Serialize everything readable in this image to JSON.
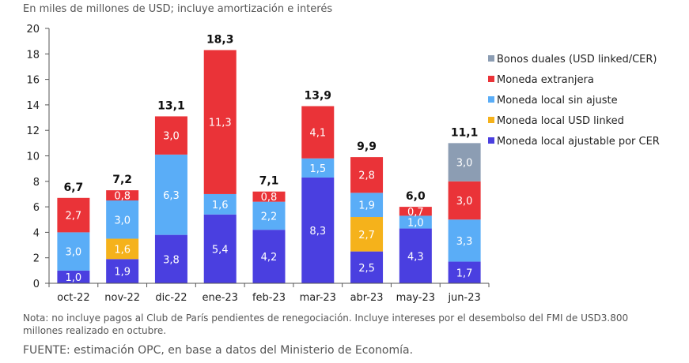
{
  "subtitle": "En miles de millones de USD; incluye amortización e interés",
  "note": "Nota: no incluye pagos al Club de París pendientes de renegociación. Incluye intereses por el desembolso del FMI de USD3.800 millones realizado en octubre.",
  "source": "FUENTE: estimación OPC, en base a datos del Ministerio de Economía.",
  "chart_data": {
    "type": "bar",
    "stacked": true,
    "title": "",
    "xlabel": "",
    "ylabel": "",
    "ylim": [
      0,
      20
    ],
    "yticks": [
      "0",
      "2",
      "4",
      "6",
      "8",
      "10",
      "12",
      "14",
      "16",
      "18",
      "20"
    ],
    "grid": false,
    "legend_position": "right",
    "categories": [
      "oct-22",
      "nov-22",
      "dic-22",
      "ene-23",
      "feb-23",
      "mar-23",
      "abr-23",
      "may-23",
      "jun-23"
    ],
    "totals": [
      "6,7",
      "7,2",
      "13,1",
      "18,3",
      "7,1",
      "13,9",
      "9,9",
      "6,0",
      "11,1"
    ],
    "series": [
      {
        "name": "Moneda local ajustable por CER",
        "color": "#4a3fe0",
        "values": [
          1.0,
          1.9,
          3.8,
          5.4,
          4.2,
          8.3,
          2.5,
          4.3,
          1.7
        ],
        "labels": [
          "1,0",
          "1,9",
          "3,8",
          "5,4",
          "4,2",
          "8,3",
          "2,5",
          "4,3",
          "1,7"
        ]
      },
      {
        "name": "Moneda local USD linked",
        "color": "#f5b21b",
        "values": [
          0,
          1.6,
          0,
          0,
          0,
          0,
          2.7,
          0,
          0
        ],
        "labels": [
          "",
          "1,6",
          "",
          "",
          "",
          "",
          "2,7",
          "",
          ""
        ]
      },
      {
        "name": "Moneda local sin ajuste",
        "color": "#5aadf7",
        "values": [
          3.0,
          3.0,
          6.3,
          1.6,
          2.2,
          1.5,
          1.9,
          1.0,
          3.3
        ],
        "labels": [
          "3,0",
          "3,0",
          "6,3",
          "1,6",
          "2,2",
          "1,5",
          "1,9",
          "1,0",
          "3,3"
        ]
      },
      {
        "name": "Moneda extranjera",
        "color": "#ea3338",
        "values": [
          2.7,
          0.8,
          3.0,
          11.3,
          0.8,
          4.1,
          2.8,
          0.7,
          3.0
        ],
        "labels": [
          "2,7",
          "0,8",
          "3,0",
          "11,3",
          "0,8",
          "4,1",
          "2,8",
          "0,7",
          "3,0"
        ]
      },
      {
        "name": "Bonos duales (USD linked/CER)",
        "color": "#8c9db3",
        "values": [
          0,
          0,
          0,
          0,
          0,
          0,
          0,
          0,
          3.0
        ],
        "labels": [
          "",
          "",
          "",
          "",
          "",
          "",
          "",
          "",
          "3,0"
        ]
      }
    ],
    "legend_order": [
      "Bonos duales (USD linked/CER)",
      "Moneda extranjera",
      "Moneda local sin ajuste",
      "Moneda local USD linked",
      "Moneda local ajustable por CER"
    ]
  }
}
